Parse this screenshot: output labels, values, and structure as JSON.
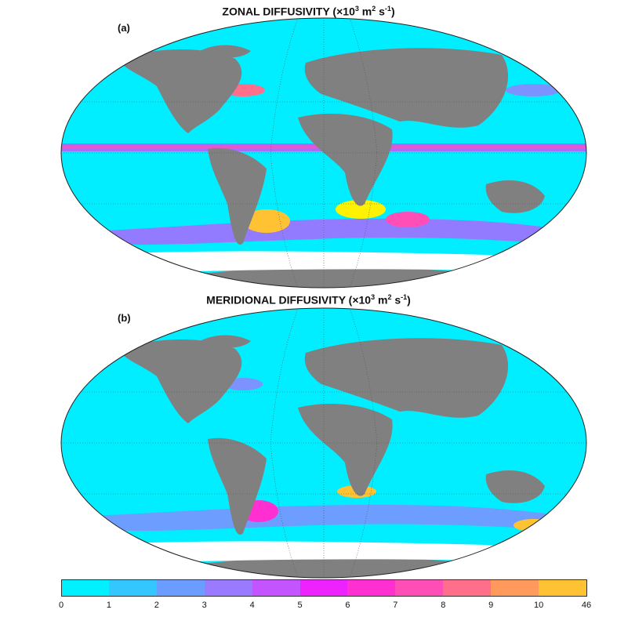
{
  "panels": [
    {
      "label": "(a)",
      "title_main": "ZONAL DIFFUSIVITY (",
      "title_times": "×10",
      "title_exp1": "3",
      "title_m": " m",
      "title_exp2": "2",
      "title_s": " s",
      "title_exp3": "-1",
      "title_close": ")"
    },
    {
      "label": "(b)",
      "title_main": "MERIDIONAL DIFFUSIVITY (",
      "title_times": "×10",
      "title_exp1": "3",
      "title_m": " m",
      "title_exp2": "2",
      "title_s": " s",
      "title_exp3": "-1",
      "title_close": ")"
    }
  ],
  "colorbar": {
    "ticks": [
      "0",
      "1",
      "2",
      "3",
      "4",
      "5",
      "6",
      "7",
      "8",
      "9",
      "10",
      "46"
    ],
    "colors": [
      "#00f0ff",
      "#33c6ff",
      "#6a9dff",
      "#9a7bff",
      "#c454ff",
      "#ee22ff",
      "#ff2fd2",
      "#ff4fb6",
      "#ff6f8c",
      "#ff9a5c",
      "#ffc233",
      "#fff200"
    ]
  },
  "colors": {
    "ocean": "#00eeff",
    "land": "#808080",
    "ice": "#ffffff",
    "grid": "#555555"
  }
}
